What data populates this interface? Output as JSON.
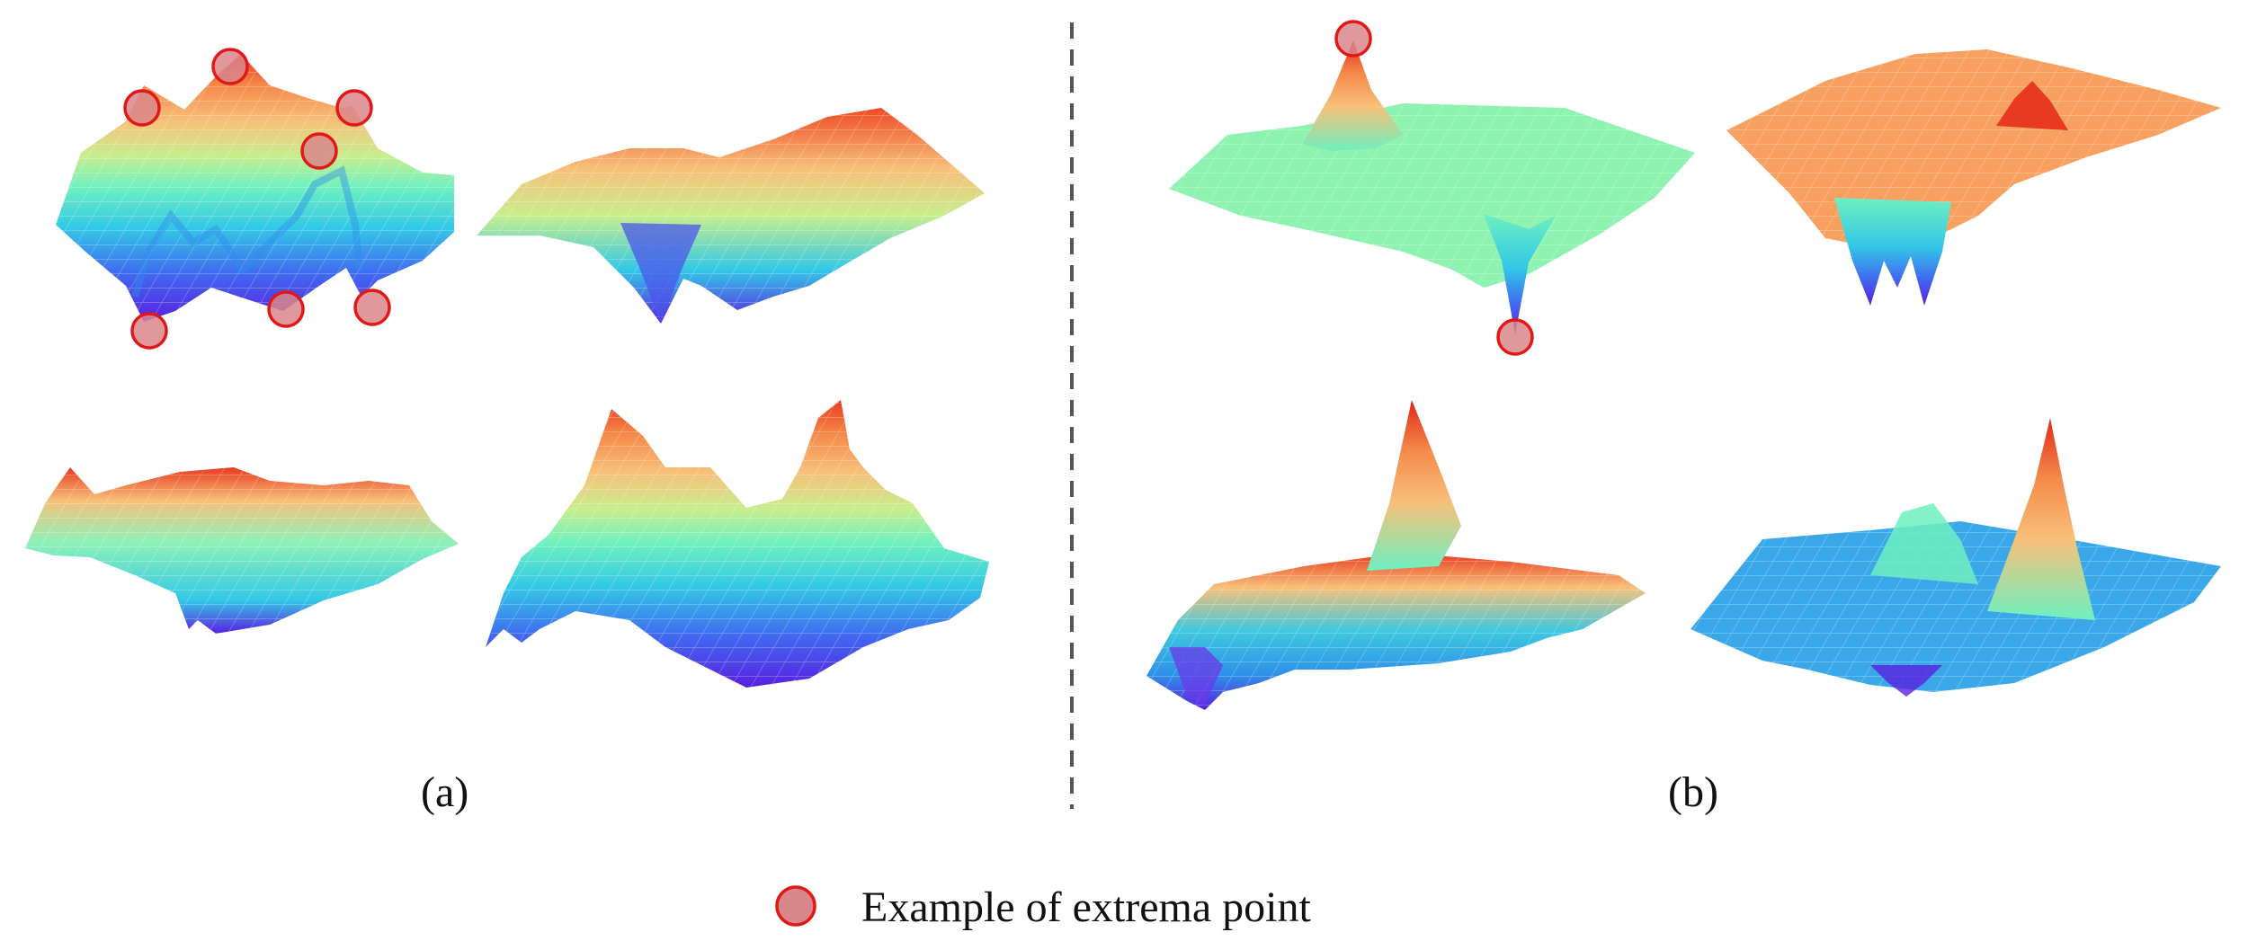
{
  "panels": [
    {
      "id": "a",
      "caption": "(a)",
      "description_type": "surfaces with many local extrema"
    },
    {
      "id": "b",
      "caption": "(b)",
      "description_type": "surfaces with few sharp extrema"
    }
  ],
  "legend": {
    "label": "Example of extrema point",
    "marker": "extrema-circle-icon"
  },
  "colors": {
    "colormap": [
      "#5a1fe0",
      "#3f6af0",
      "#33c8e6",
      "#6ef0c0",
      "#c8ee8e",
      "#f7c07a",
      "#f58a4a",
      "#e83a20"
    ],
    "marker_fill": "#d9868a",
    "marker_stroke": "#e01818",
    "divider": "#555555"
  }
}
